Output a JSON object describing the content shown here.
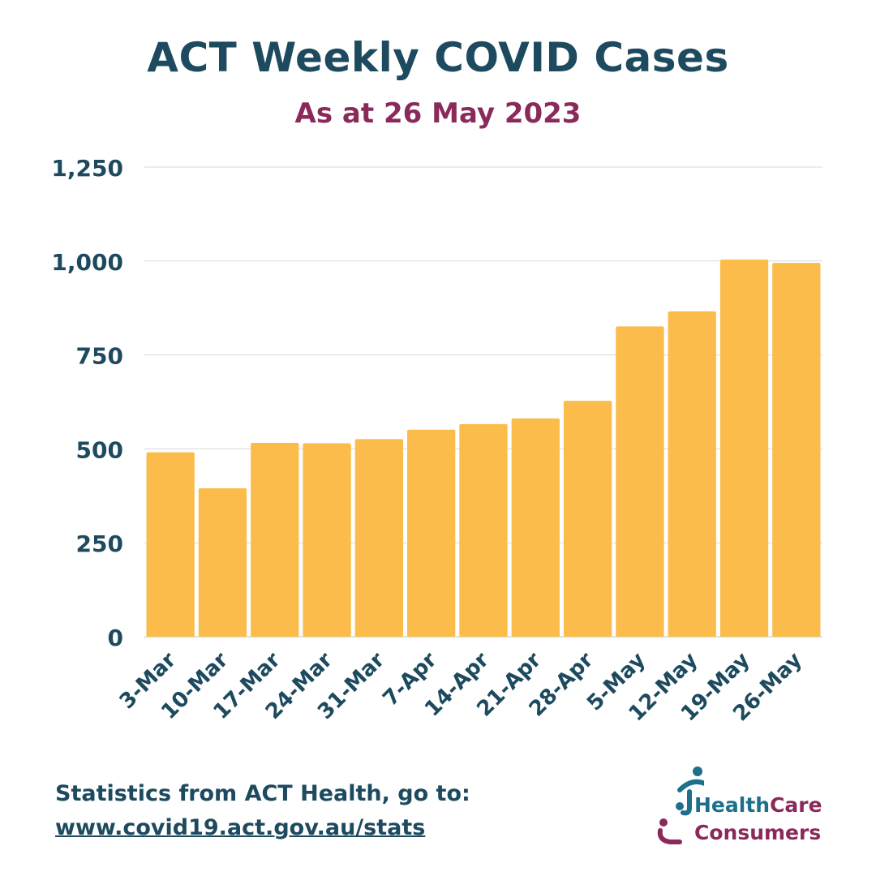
{
  "title": "ACT Weekly COVID Cases",
  "subtitle": "As at 26 May 2023",
  "source": {
    "text": "Statistics from ACT Health, go to:",
    "link": "www.covid19.act.gov.au/stats"
  },
  "logo": {
    "word_health": "Health",
    "word_care": "Care",
    "word_consumers": "Consumers"
  },
  "colors": {
    "bar": "#fbbc4c",
    "title": "#1d4a5e",
    "subtitle": "#8a2a5b",
    "axis_text": "#1d4a5e",
    "grid": "#d9d9d9"
  },
  "chart_data": {
    "type": "bar",
    "categories": [
      "3-Mar",
      "10-Mar",
      "17-Mar",
      "24-Mar",
      "31-Mar",
      "7-Apr",
      "14-Apr",
      "21-Apr",
      "28-Apr",
      "5-May",
      "12-May",
      "19-May",
      "26-May"
    ],
    "values": [
      491,
      395,
      516,
      515,
      526,
      551,
      566,
      581,
      628,
      826,
      866,
      1004,
      995
    ],
    "yticks": [
      0,
      250,
      500,
      750,
      1000,
      1250
    ],
    "ytick_labels": [
      "0",
      "250",
      "500",
      "750",
      "1,000",
      "1,250"
    ],
    "ylim": [
      0,
      1250
    ],
    "grid": true,
    "legend": false
  }
}
